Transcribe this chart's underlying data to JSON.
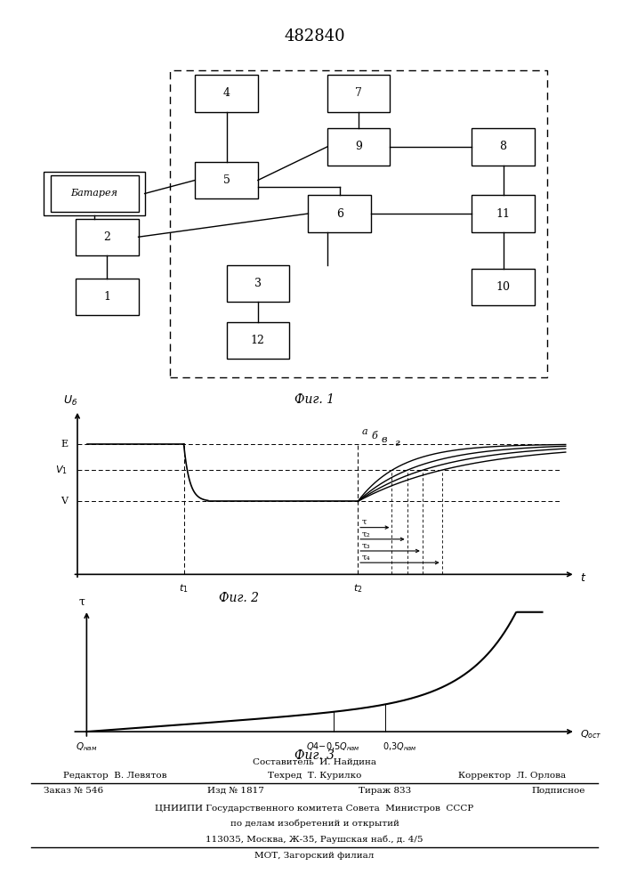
{
  "title": "482840",
  "fig1_caption": "Фиг. 1",
  "fig2_caption": "Фиг. 2",
  "fig3_caption": "Фиг. 3",
  "footer_line1": "Составитель  И. Найдина",
  "footer_line2_left": "Редактор  В. Левятов",
  "footer_line2_mid": "Техред  Т. Курилко",
  "footer_line2_right": "Корректор  Л. Орлова",
  "footer_line3_left": "Заказ № 546",
  "footer_line3_mid1": "Изд № 1817",
  "footer_line3_mid2": "Тираж 833",
  "footer_line3_right": "Подписное",
  "footer_line4": "ЦНИИПИ Государственного комитета Совета  Министров  СССР",
  "footer_line5": "по делам изобретений и открытий",
  "footer_line6": "113035, Москва, Ж-35, Раушская наб., д. 4/5",
  "footer_line7": "МОТ, Загорский филиал"
}
